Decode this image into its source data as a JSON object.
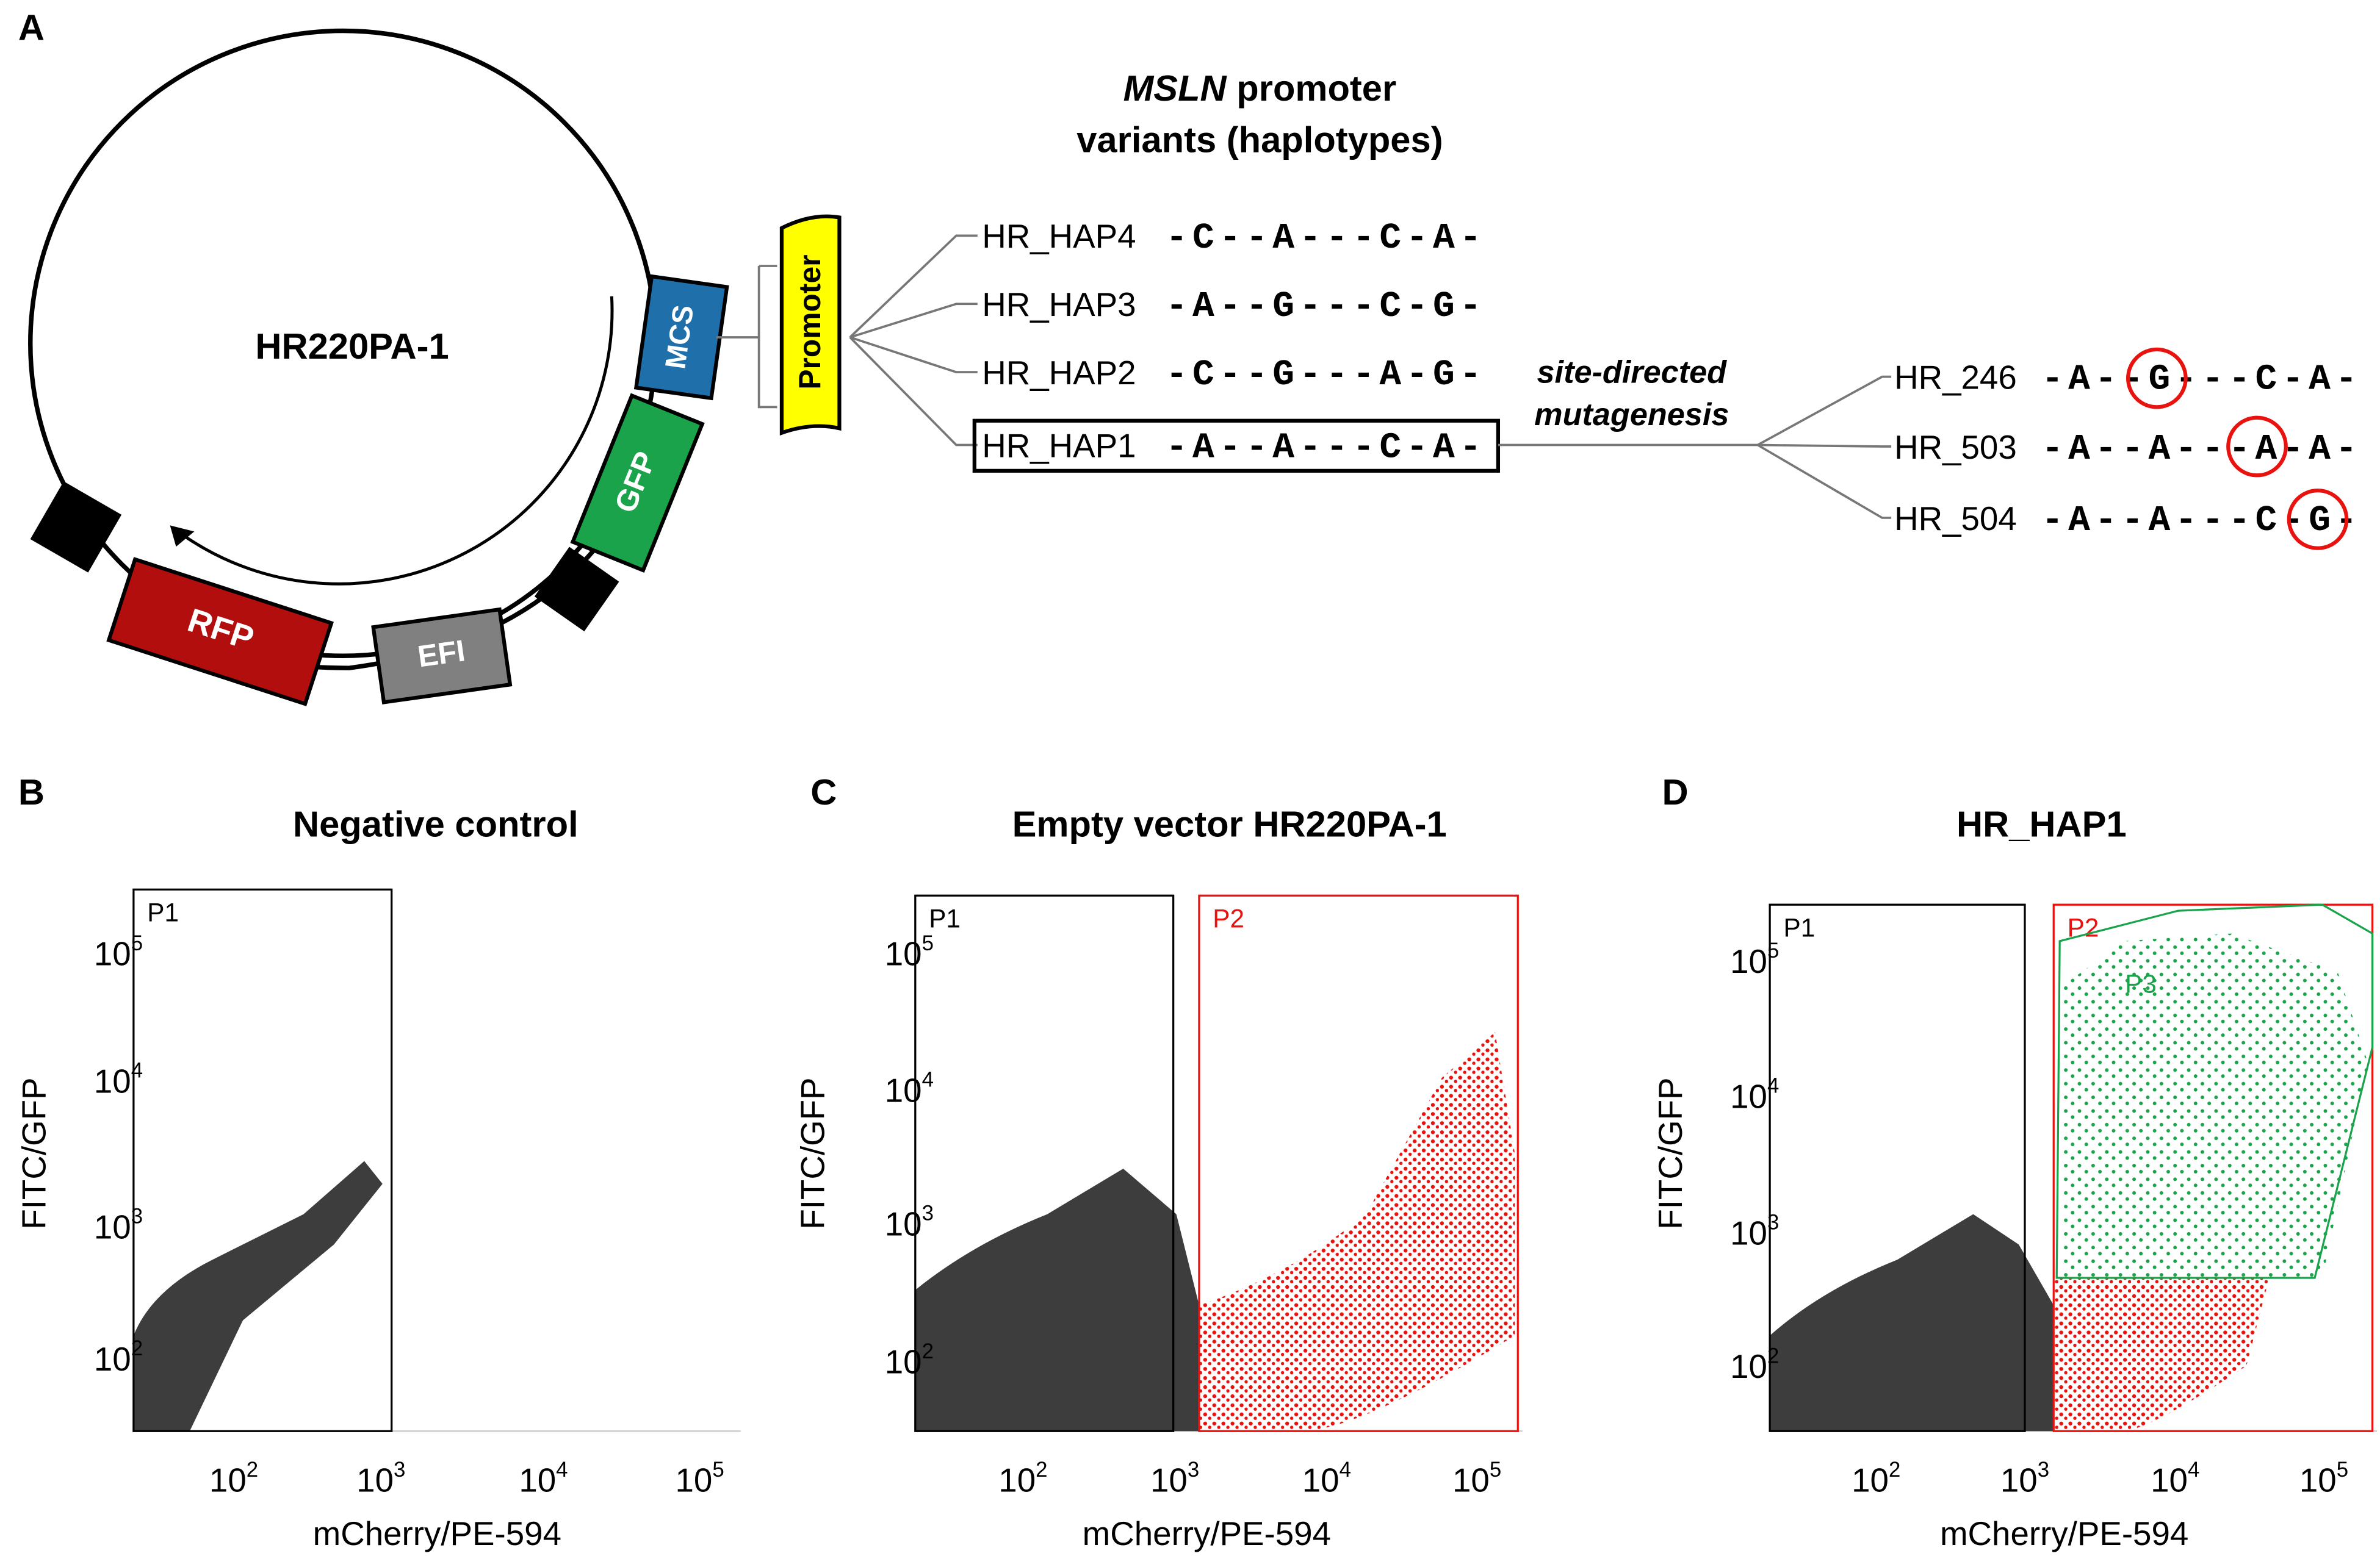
{
  "panel_labels": [
    "A",
    "B",
    "C",
    "D"
  ],
  "plasmid": {
    "name": "HR220PA-1",
    "elements": {
      "mcs": "MCS",
      "gfp": "GFP",
      "efi": "EFI",
      "rfp": "RFP",
      "promoter": "Promoter"
    }
  },
  "promoter_title": {
    "gene": "MSLN",
    "rest": " promoter",
    "line2": "variants (haplotypes)"
  },
  "haplotypes": [
    {
      "name": "HR_HAP4",
      "seq": "-C--A---C-A-"
    },
    {
      "name": "HR_HAP3",
      "seq": "-A--G---C-G-"
    },
    {
      "name": "HR_HAP2",
      "seq": "-C--G---A-G-"
    },
    {
      "name": "HR_HAP1",
      "seq": "-A--A---C-A-"
    }
  ],
  "mutagenesis_label": [
    "site-directed",
    "mutagenesis"
  ],
  "mutants": [
    {
      "name": "HR_246",
      "seq": "-A--G---C-A-"
    },
    {
      "name": "HR_503",
      "seq": "-A--A---A-A-"
    },
    {
      "name": "HR_504",
      "seq": "-A--A---C-G-"
    }
  ],
  "plots": [
    {
      "title": "Negative control",
      "xlabel": "mCherry/PE-594",
      "ylabel": "FITC/GFP",
      "gates": [
        "P1"
      ],
      "xticks": [
        {
          "base": "10",
          "exp": "2"
        },
        {
          "base": "10",
          "exp": "3"
        },
        {
          "base": "10",
          "exp": "4"
        },
        {
          "base": "10",
          "exp": "5"
        }
      ],
      "yticks": [
        {
          "base": "10",
          "exp": "5"
        },
        {
          "base": "10",
          "exp": "4"
        },
        {
          "base": "10",
          "exp": "3"
        },
        {
          "base": "10",
          "exp": "2"
        }
      ]
    },
    {
      "title": "Empty vector HR220PA-1",
      "xlabel": "mCherry/PE-594",
      "ylabel": "FITC/GFP",
      "gates": [
        "P1",
        "P2"
      ],
      "xticks": [
        {
          "base": "10",
          "exp": "2"
        },
        {
          "base": "10",
          "exp": "3"
        },
        {
          "base": "10",
          "exp": "4"
        },
        {
          "base": "10",
          "exp": "5"
        }
      ],
      "yticks": [
        {
          "base": "10",
          "exp": "5"
        },
        {
          "base": "10",
          "exp": "4"
        },
        {
          "base": "10",
          "exp": "3"
        },
        {
          "base": "10",
          "exp": "2"
        }
      ]
    },
    {
      "title": "HR_HAP1",
      "xlabel": "mCherry/PE-594",
      "ylabel": "FITC/GFP",
      "gates": [
        "P1",
        "P2",
        "P3"
      ],
      "xticks": [
        {
          "base": "10",
          "exp": "2"
        },
        {
          "base": "10",
          "exp": "3"
        },
        {
          "base": "10",
          "exp": "4"
        },
        {
          "base": "10",
          "exp": "5"
        }
      ],
      "yticks": [
        {
          "base": "10",
          "exp": "5"
        },
        {
          "base": "10",
          "exp": "4"
        },
        {
          "base": "10",
          "exp": "3"
        },
        {
          "base": "10",
          "exp": "2"
        }
      ]
    }
  ]
}
